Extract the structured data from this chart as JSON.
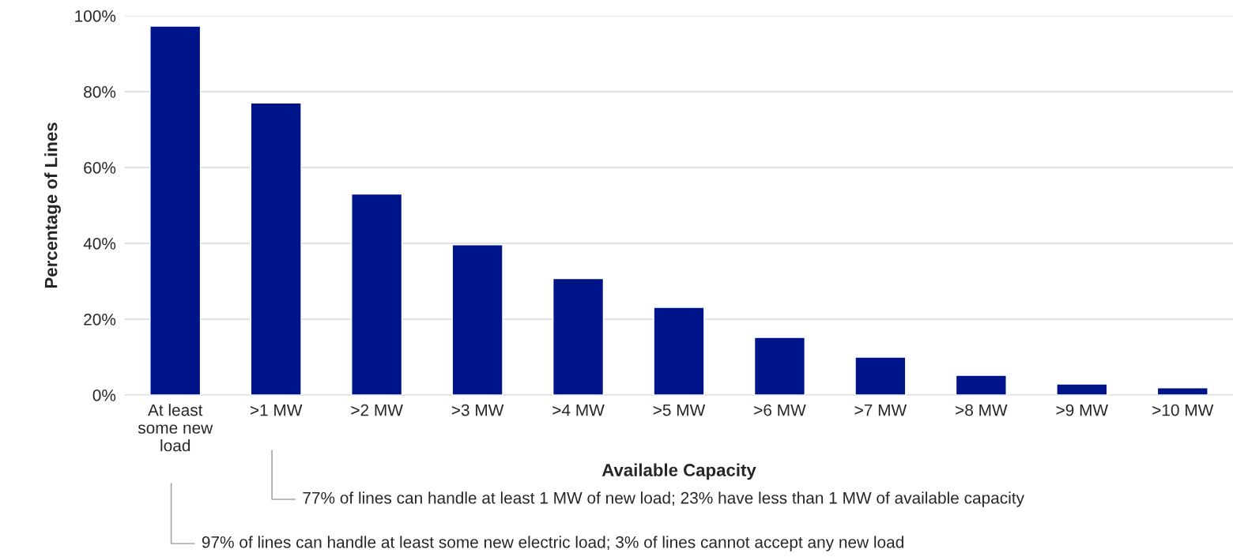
{
  "chart_data": {
    "type": "bar",
    "xlabel": "Available Capacity",
    "ylabel": "Percentage of Lines",
    "categories": [
      "At least some new load",
      ">1 MW",
      ">2 MW",
      ">3 MW",
      ">4 MW",
      ">5 MW",
      ">6 MW",
      ">7 MW",
      ">8 MW",
      ">9 MW",
      ">10 MW"
    ],
    "values": [
      97.3,
      77,
      53,
      39.6,
      30.7,
      23.1,
      15.2,
      10,
      5.2,
      2.9,
      1.9
    ],
    "color": "#001489",
    "ylim": [
      0,
      100
    ],
    "yticks": [
      {
        "value": 0,
        "label": "0%"
      },
      {
        "value": 20,
        "label": "20%"
      },
      {
        "value": 40,
        "label": "40%"
      },
      {
        "value": 60,
        "label": "60%"
      },
      {
        "value": 80,
        "label": "80%"
      },
      {
        "value": 100,
        "label": "100%"
      }
    ],
    "grid": "y",
    "annotations": [
      "77% of lines can handle at least 1 MW of new load; 23% have less than 1 MW of available capacity",
      "97% of lines can handle at least some new electric load; 3% of lines cannot accept any new load"
    ]
  }
}
